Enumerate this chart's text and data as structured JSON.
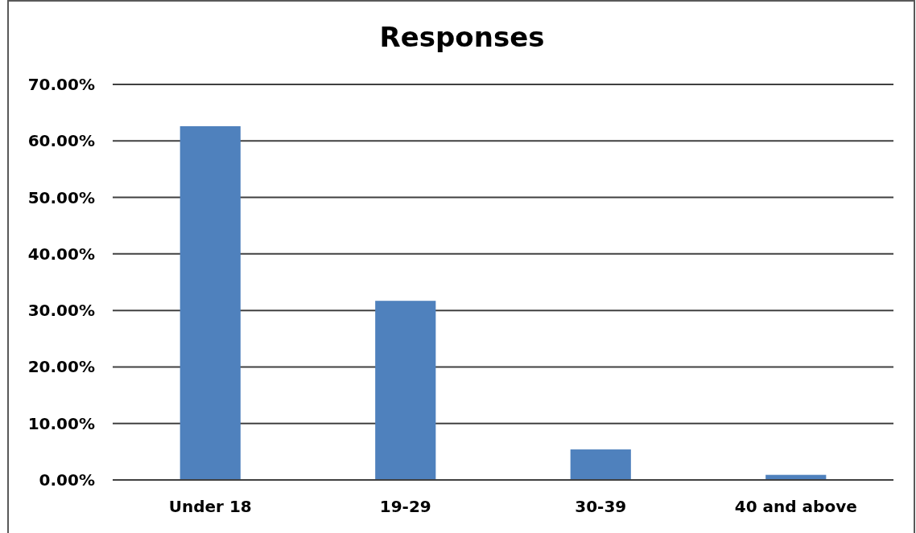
{
  "chart_data": {
    "type": "bar",
    "title": "Responses",
    "categories": [
      "Under 18",
      "19-29",
      "30-39",
      "40 and above"
    ],
    "values": [
      62.6,
      31.7,
      5.4,
      0.9
    ],
    "color": "#4f81bd",
    "ylim": [
      0,
      70
    ],
    "yticks": [
      {
        "value": 0,
        "label": "0.00%"
      },
      {
        "value": 10,
        "label": "10.00%"
      },
      {
        "value": 20,
        "label": "20.00%"
      },
      {
        "value": 30,
        "label": "30.00%"
      },
      {
        "value": 40,
        "label": "40.00%"
      },
      {
        "value": 50,
        "label": "50.00%"
      },
      {
        "value": 60,
        "label": "60.00%"
      },
      {
        "value": 70,
        "label": "70.00%"
      }
    ],
    "grid": "y"
  }
}
